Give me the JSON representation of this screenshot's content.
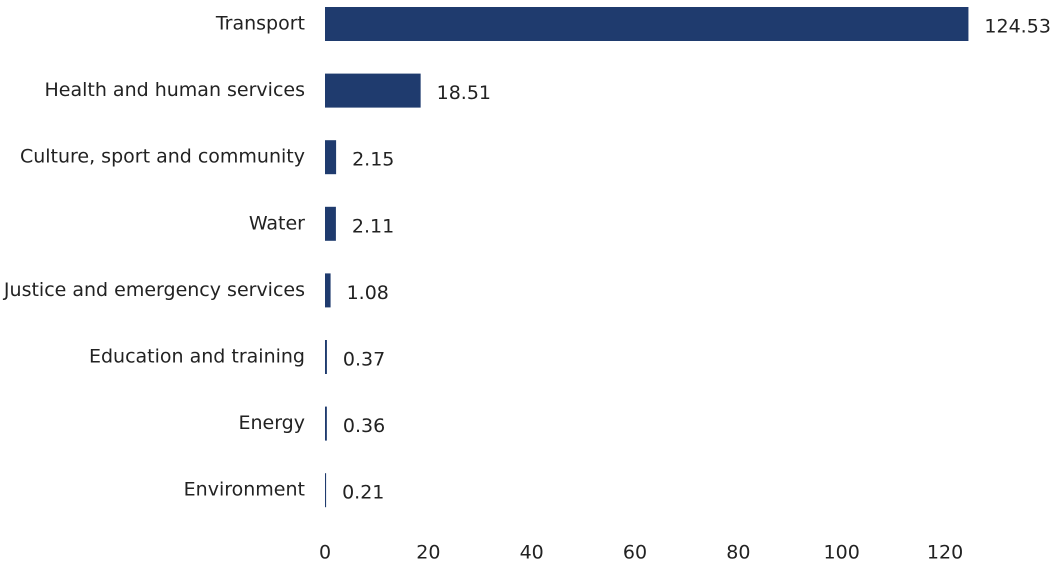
{
  "chart_data": {
    "type": "bar",
    "orientation": "horizontal",
    "categories": [
      "Transport",
      "Health and human services",
      "Culture, sport and community",
      "Water",
      "Justice and emergency services",
      "Education and training",
      "Energy",
      "Environment"
    ],
    "values": [
      124.53,
      18.51,
      2.15,
      2.11,
      1.08,
      0.37,
      0.36,
      0.21
    ],
    "color": "#1f3b6e",
    "xlim": [
      0,
      130
    ],
    "xticks": [
      0,
      20,
      40,
      60,
      80,
      100,
      120
    ],
    "grid": false
  }
}
